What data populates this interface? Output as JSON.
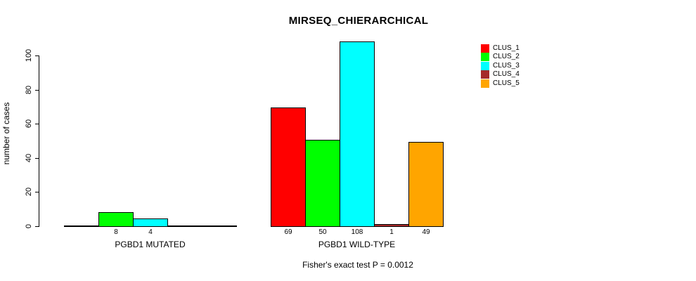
{
  "chart_data": {
    "type": "bar",
    "title": "MIRSEQ_CHIERARCHICAL",
    "ylabel": "number of cases",
    "xlabel": "",
    "ylim": [
      0,
      100
    ],
    "yticks": [
      0,
      20,
      40,
      60,
      80,
      100
    ],
    "grid": false,
    "legend_position": "top-right",
    "categories": [
      "PGBD1 MUTATED",
      "PGBD1 WILD-TYPE"
    ],
    "series": [
      {
        "name": "CLUS_1",
        "color": "#ff0000",
        "values": [
          0,
          69
        ]
      },
      {
        "name": "CLUS_2",
        "color": "#00ff00",
        "values": [
          8,
          50
        ]
      },
      {
        "name": "CLUS_3",
        "color": "#00ffff",
        "values": [
          4,
          108
        ]
      },
      {
        "name": "CLUS_4",
        "color": "#a52a2a",
        "values": [
          0,
          1
        ]
      },
      {
        "name": "CLUS_5",
        "color": "#ffa500",
        "values": [
          0,
          49
        ]
      }
    ],
    "bar_value_labels_visible": [
      "8",
      "4",
      "69",
      "50",
      "108",
      "1",
      "49"
    ],
    "annotation": "Fisher's exact test P = 0.0012",
    "bar_border_color": "#000000",
    "axis_color": "#000000"
  }
}
